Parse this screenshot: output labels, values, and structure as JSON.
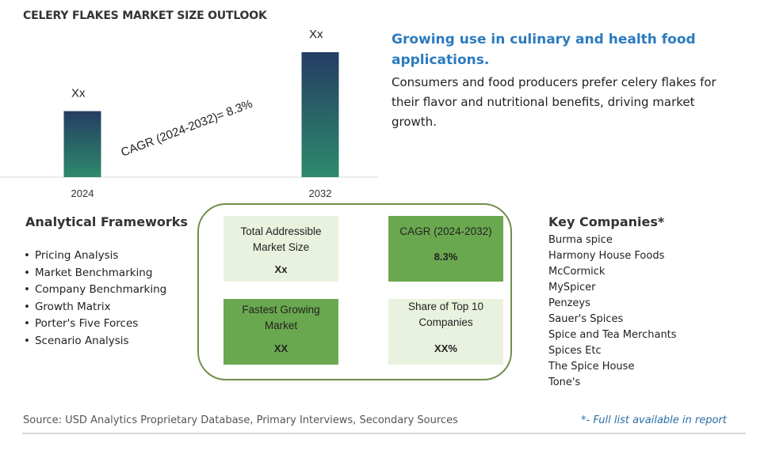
{
  "title": "CELERY FLAKES MARKET SIZE OUTLOOK",
  "chart_data": {
    "type": "bar",
    "categories": [
      "2024",
      "2032"
    ],
    "data_labels": [
      "Xx",
      "Xx"
    ],
    "annotation": "CAGR (2024-2032)=  8.3%",
    "cagr": 8.3,
    "colors": {
      "bar_top": "#253d63",
      "bar_bottom": "#2e8a6c"
    }
  },
  "headline": "Growing use in culinary and health food applications.",
  "description": "Consumers and food producers prefer celery flakes for their flavor and nutritional benefits, driving market growth.",
  "analytical_frameworks": {
    "heading": "Analytical Frameworks",
    "items": [
      "Pricing Analysis",
      "Market Benchmarking",
      "Company Benchmarking",
      "Growth Matrix",
      "Porter's Five Forces",
      "Scenario Analysis"
    ]
  },
  "metrics": {
    "tam": {
      "label": "Total Addressible Market Size",
      "value": "Xx"
    },
    "cagr": {
      "label": "CAGR (2024-2032)",
      "value": "8.3%"
    },
    "fastest": {
      "label": "Fastest Growing Market",
      "value": "XX"
    },
    "share": {
      "label": "Share of Top 10 Companies",
      "value": "XX%"
    }
  },
  "key_companies": {
    "heading": "Key Companies*",
    "items": [
      "Burma spice",
      "Harmony House Foods",
      "McCormick",
      "MySpicer",
      "Penzeys",
      "Sauer's Spices",
      "Spice and Tea Merchants",
      "Spices Etc",
      "The Spice House",
      "Tone's"
    ]
  },
  "source": "Source: USD Analytics Proprietary Database, Primary Interviews, Secondary Sources",
  "note": "*- Full list available in report",
  "colors": {
    "accent": "#2b7bbf",
    "green_dark": "#6aa84f",
    "green_light": "#e8f2de",
    "panel_border": "#6f8f4a"
  }
}
